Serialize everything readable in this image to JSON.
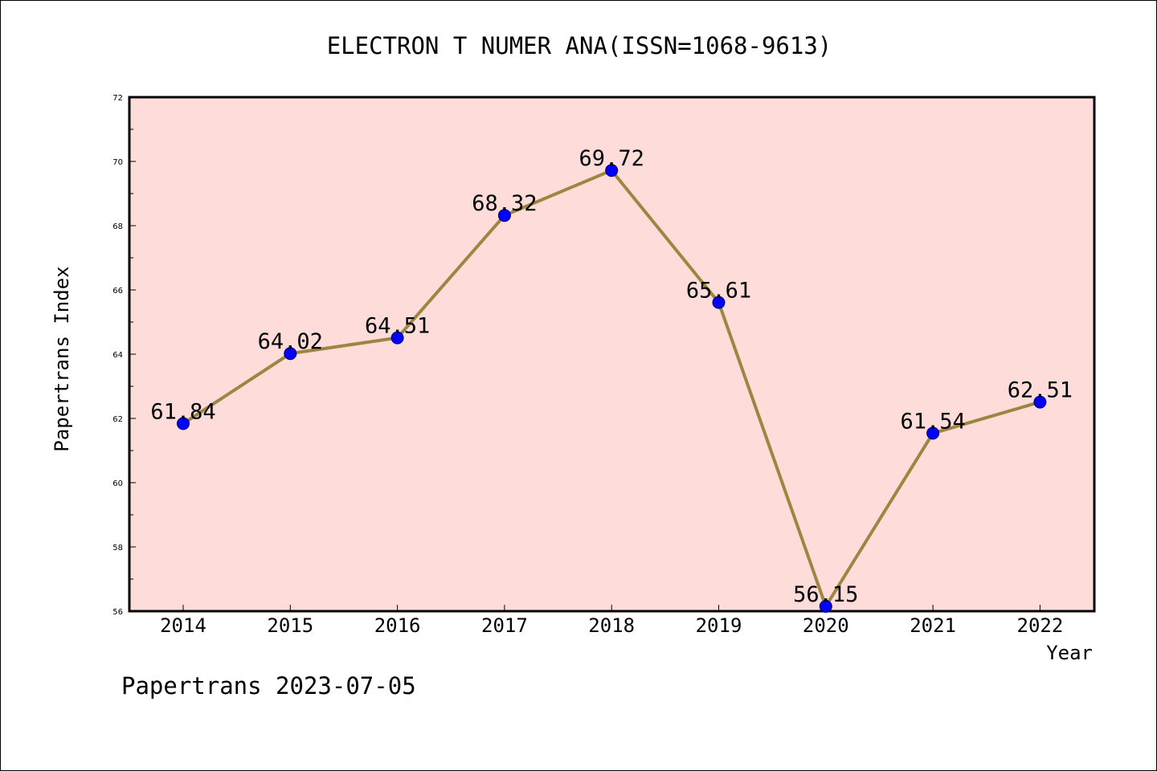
{
  "chart_data": {
    "type": "line",
    "title": "ELECTRON T NUMER ANA(ISSN=1068-9613)",
    "xlabel": "Year",
    "ylabel": "Papertrans Index",
    "categories": [
      "2014",
      "2015",
      "2016",
      "2017",
      "2018",
      "2019",
      "2020",
      "2021",
      "2022"
    ],
    "values": [
      61.84,
      64.02,
      64.51,
      68.32,
      69.72,
      65.61,
      56.15,
      61.54,
      62.51
    ],
    "data_labels": [
      "61.84",
      "64.02",
      "64.51",
      "68.32",
      "69.72",
      "65.61",
      "56.15",
      "61.54",
      "62.51"
    ],
    "ylim": [
      56,
      72
    ],
    "yticks": [
      56,
      58,
      60,
      62,
      64,
      66,
      68,
      70,
      72
    ],
    "ytick_labels": [
      "56",
      "58",
      "60",
      "62",
      "64",
      "66",
      "68",
      "70",
      "72"
    ],
    "grid": false,
    "legend": "none",
    "colors": {
      "plot_background": "#fddcd9",
      "line": "#9b8741",
      "marker_fill": "#0000ff",
      "marker_edge": "#00006e",
      "axes": "#000000"
    }
  },
  "footer": "Papertrans 2023-07-05"
}
